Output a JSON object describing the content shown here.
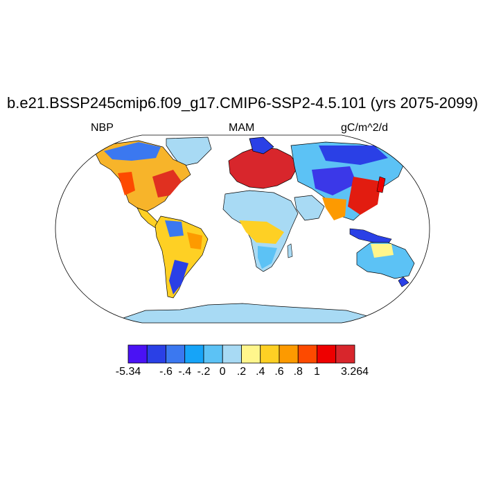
{
  "title": "b.e21.BSSP245cmip6.f09_g17.CMIP6-SSP2-4.5.101 (yrs 2075-2099)",
  "left_label": "NBP",
  "center_label": "MAM",
  "right_label": "gC/m^2/d",
  "colorbar": {
    "colors": [
      "#4a12f4",
      "#2a40e6",
      "#3b78f0",
      "#16a4f8",
      "#5cc2f5",
      "#a8daf4",
      "#fff68c",
      "#fed024",
      "#fd9a00",
      "#fd4a00",
      "#ee0000",
      "#d8262c"
    ],
    "tick_labels": [
      "-5.34",
      "-.6",
      "-.4",
      "-.2",
      "0",
      ".2",
      ".4",
      ".6",
      ".8",
      "1",
      "3.264"
    ]
  },
  "colors": {
    "ocean": "#ffffff",
    "antarctica": "#a8daf4",
    "coast": "#000000"
  }
}
